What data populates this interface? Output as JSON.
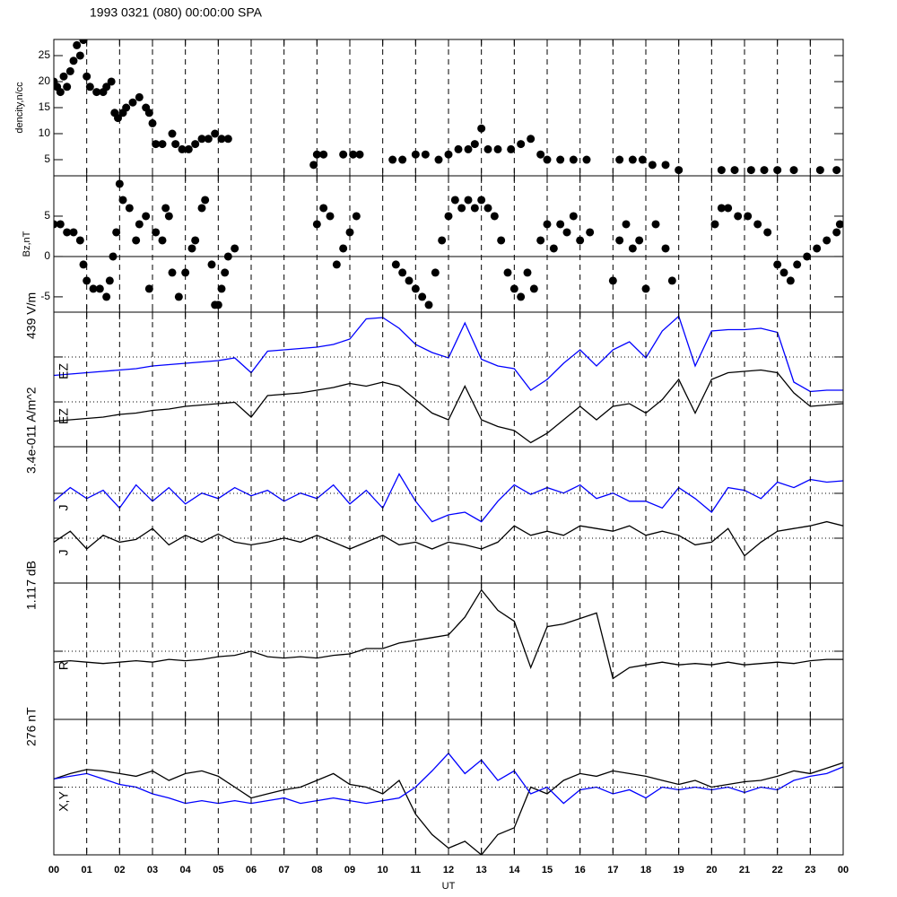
{
  "chart_data": [
    {
      "type": "scatter",
      "title": "1993 0321 (080) 00:00:00 SPA",
      "ylabel": "dencity,n/cc",
      "color": "#000000",
      "xlim": [
        0,
        24
      ],
      "ylim": [
        1.9,
        28.1
      ],
      "yticks": [
        5,
        10,
        15,
        20,
        25
      ],
      "x": [
        0,
        0.1,
        0.2,
        0.3,
        0.4,
        0.5,
        0.6,
        0.7,
        0.8,
        0.9,
        1.0,
        1.1,
        1.3,
        1.5,
        1.6,
        1.75,
        1.85,
        1.95,
        2.1,
        2.2,
        2.4,
        2.6,
        2.8,
        2.9,
        3.0,
        3.1,
        3.3,
        3.6,
        3.7,
        3.9,
        4.1,
        4.3,
        4.5,
        4.7,
        4.9,
        5.1,
        5.3,
        7.9,
        8.0,
        8.2,
        8.8,
        9.1,
        9.3,
        10.3,
        10.6,
        11.0,
        11.3,
        11.7,
        12.0,
        12.3,
        12.6,
        12.8,
        13.0,
        13.2,
        13.5,
        13.9,
        14.2,
        14.5,
        14.8,
        15.0,
        15.4,
        15.8,
        16.2,
        17.2,
        17.6,
        17.9,
        18.2,
        18.6,
        19.0,
        20.3,
        20.7,
        21.2,
        21.6,
        22.0,
        22.5,
        23.3,
        23.8
      ],
      "values": [
        20,
        19,
        18,
        21,
        19,
        22,
        24,
        27,
        25,
        28,
        21,
        19,
        18,
        18,
        19,
        20,
        14,
        13,
        14,
        15,
        16,
        17,
        15,
        14,
        12,
        8,
        8,
        10,
        8,
        7,
        7,
        8,
        9,
        9,
        10,
        9,
        9,
        4,
        6,
        6,
        6,
        6,
        6,
        5,
        5,
        6,
        6,
        5,
        6,
        7,
        7,
        8,
        11,
        7,
        7,
        7,
        8,
        9,
        6,
        5,
        5,
        5,
        5,
        5,
        5,
        5,
        4,
        4,
        3,
        3,
        3,
        3,
        3,
        3,
        3,
        3,
        3
      ]
    },
    {
      "type": "scatter",
      "ylabel": "Bz,nT",
      "color": "#000000",
      "zero_line": true,
      "xlim": [
        0,
        24
      ],
      "ylim": [
        -6.9,
        10
      ],
      "yticks": [
        -5,
        0,
        5
      ],
      "x": [
        0.0,
        0.2,
        0.4,
        0.6,
        0.8,
        0.9,
        1.0,
        1.2,
        1.4,
        1.6,
        1.7,
        1.8,
        1.9,
        2.0,
        2.1,
        2.3,
        2.5,
        2.6,
        2.8,
        2.9,
        3.1,
        3.3,
        3.4,
        3.5,
        3.6,
        3.8,
        4.0,
        4.2,
        4.3,
        4.5,
        4.6,
        4.8,
        4.9,
        5.0,
        5.1,
        5.2,
        5.3,
        5.5,
        8.0,
        8.2,
        8.4,
        8.6,
        8.8,
        9.0,
        9.2,
        10.4,
        10.6,
        10.8,
        11.0,
        11.2,
        11.4,
        11.6,
        11.8,
        12.0,
        12.2,
        12.4,
        12.6,
        12.8,
        13.0,
        13.2,
        13.4,
        13.6,
        13.8,
        14.0,
        14.2,
        14.4,
        14.6,
        14.8,
        15.0,
        15.2,
        15.4,
        15.6,
        15.8,
        16.0,
        16.3,
        17.0,
        17.2,
        17.4,
        17.6,
        17.8,
        18.0,
        18.3,
        18.6,
        18.8,
        20.1,
        20.3,
        20.5,
        20.8,
        21.1,
        21.4,
        21.7,
        22.0,
        22.2,
        22.4,
        22.6,
        22.9,
        23.2,
        23.5,
        23.8,
        23.9
      ],
      "values": [
        4,
        4,
        3,
        3,
        2,
        -1,
        -3,
        -4,
        -4,
        -5,
        -3,
        0,
        3,
        9,
        7,
        6,
        2,
        4,
        5,
        -4,
        3,
        2,
        6,
        5,
        -2,
        -5,
        -2,
        1,
        2,
        6,
        7,
        -1,
        -6,
        -6,
        -4,
        -2,
        0,
        1,
        4,
        6,
        5,
        -1,
        1,
        3,
        5,
        -1,
        -2,
        -3,
        -4,
        -5,
        -6,
        -2,
        2,
        5,
        7,
        6,
        7,
        6,
        7,
        6,
        5,
        2,
        -2,
        -4,
        -5,
        -2,
        -4,
        2,
        4,
        1,
        4,
        3,
        5,
        2,
        3,
        -3,
        2,
        4,
        1,
        2,
        -4,
        4,
        1,
        -3,
        4,
        6,
        6,
        5,
        5,
        4,
        3,
        -1,
        -2,
        -3,
        -1,
        0,
        1,
        2,
        3,
        4
      ]
    },
    {
      "type": "line",
      "scale_label": "439 V/m",
      "labels": [
        "EZ",
        "EZ"
      ],
      "xlim": [
        0,
        24
      ],
      "ylim": [
        0,
        1
      ],
      "ref_lines": [
        0.667,
        0.333
      ],
      "x": [
        0,
        0.5,
        1,
        1.5,
        2,
        2.5,
        3,
        3.5,
        4,
        4.5,
        5,
        5.5,
        6,
        6.5,
        7,
        7.5,
        8,
        8.5,
        9,
        9.5,
        10,
        10.5,
        11,
        11.5,
        12,
        12.5,
        13,
        13.5,
        14,
        14.5,
        15,
        15.5,
        16,
        16.5,
        17,
        17.5,
        18,
        18.5,
        19,
        19.5,
        20,
        20.5,
        21,
        21.5,
        22,
        22.5,
        23,
        23.5,
        24
      ],
      "series": [
        {
          "color": "#0000ff",
          "values": [
            0.53,
            0.54,
            0.55,
            0.56,
            0.57,
            0.58,
            0.6,
            0.61,
            0.62,
            0.63,
            0.64,
            0.66,
            0.55,
            0.71,
            0.72,
            0.73,
            0.74,
            0.76,
            0.8,
            0.95,
            0.96,
            0.88,
            0.76,
            0.7,
            0.66,
            0.92,
            0.65,
            0.6,
            0.58,
            0.42,
            0.5,
            0.62,
            0.72,
            0.6,
            0.72,
            0.78,
            0.66,
            0.86,
            0.97,
            0.6,
            0.86,
            0.87,
            0.87,
            0.88,
            0.85,
            0.48,
            0.41,
            0.42,
            0.42
          ]
        },
        {
          "color": "#000000",
          "values": [
            0.19,
            0.2,
            0.21,
            0.22,
            0.24,
            0.25,
            0.27,
            0.28,
            0.3,
            0.31,
            0.32,
            0.33,
            0.22,
            0.38,
            0.39,
            0.4,
            0.42,
            0.44,
            0.47,
            0.45,
            0.48,
            0.45,
            0.35,
            0.25,
            0.2,
            0.45,
            0.2,
            0.15,
            0.12,
            0.03,
            0.1,
            0.2,
            0.3,
            0.2,
            0.3,
            0.32,
            0.25,
            0.35,
            0.5,
            0.25,
            0.5,
            0.55,
            0.56,
            0.57,
            0.55,
            0.4,
            0.3,
            0.31,
            0.32
          ]
        }
      ]
    },
    {
      "type": "line",
      "scale_label": "3.4e-011 A/m^2",
      "labels": [
        "J",
        "J"
      ],
      "xlim": [
        0,
        24
      ],
      "ylim": [
        0,
        1
      ],
      "ref_lines": [
        0.658,
        0.329
      ],
      "x": [
        0,
        0.5,
        1,
        1.5,
        2,
        2.5,
        3,
        3.5,
        4,
        4.5,
        5,
        5.5,
        6,
        6.5,
        7,
        7.5,
        8,
        8.5,
        9,
        9.5,
        10,
        10.5,
        11,
        11.5,
        12,
        12.5,
        13,
        13.5,
        14,
        14.5,
        15,
        15.5,
        16,
        16.5,
        17,
        17.5,
        18,
        18.5,
        19,
        19.5,
        20,
        20.5,
        21,
        21.5,
        22,
        22.5,
        23,
        23.5,
        24
      ],
      "series": [
        {
          "color": "#0000ff",
          "values": [
            0.6,
            0.7,
            0.62,
            0.68,
            0.55,
            0.72,
            0.6,
            0.7,
            0.58,
            0.66,
            0.62,
            0.7,
            0.64,
            0.68,
            0.6,
            0.66,
            0.62,
            0.72,
            0.58,
            0.68,
            0.55,
            0.8,
            0.6,
            0.45,
            0.5,
            0.52,
            0.45,
            0.6,
            0.72,
            0.65,
            0.7,
            0.66,
            0.72,
            0.62,
            0.66,
            0.6,
            0.6,
            0.55,
            0.7,
            0.62,
            0.52,
            0.7,
            0.68,
            0.62,
            0.74,
            0.7,
            0.76,
            0.74,
            0.75
          ]
        },
        {
          "color": "#000000",
          "values": [
            0.3,
            0.38,
            0.25,
            0.35,
            0.3,
            0.32,
            0.4,
            0.28,
            0.35,
            0.3,
            0.36,
            0.3,
            0.28,
            0.3,
            0.33,
            0.3,
            0.35,
            0.3,
            0.25,
            0.3,
            0.35,
            0.28,
            0.3,
            0.25,
            0.3,
            0.28,
            0.25,
            0.3,
            0.42,
            0.35,
            0.38,
            0.35,
            0.42,
            0.4,
            0.38,
            0.42,
            0.35,
            0.38,
            0.35,
            0.28,
            0.3,
            0.4,
            0.2,
            0.3,
            0.38,
            0.4,
            0.42,
            0.45,
            0.42
          ]
        }
      ]
    },
    {
      "type": "line",
      "scale_label": "1.117 dB",
      "labels": [
        "R"
      ],
      "xlim": [
        0,
        24
      ],
      "ylim": [
        0,
        1
      ],
      "ref_lines": [
        0.5
      ],
      "x": [
        0,
        0.5,
        1,
        1.5,
        2,
        2.5,
        3,
        3.5,
        4,
        4.5,
        5,
        5.5,
        6,
        6.5,
        7,
        7.5,
        8,
        8.5,
        9,
        9.5,
        10,
        10.5,
        11,
        11.5,
        12,
        12.5,
        13,
        13.5,
        14,
        14.5,
        15,
        15.5,
        16,
        16.5,
        17,
        17.5,
        18,
        18.5,
        19,
        19.5,
        20,
        20.5,
        21,
        21.5,
        22,
        22.5,
        23,
        23.5,
        24
      ],
      "series": [
        {
          "color": "#000000",
          "values": [
            0.42,
            0.43,
            0.42,
            0.41,
            0.42,
            0.43,
            0.42,
            0.44,
            0.43,
            0.44,
            0.46,
            0.47,
            0.5,
            0.46,
            0.45,
            0.46,
            0.45,
            0.47,
            0.48,
            0.52,
            0.52,
            0.56,
            0.58,
            0.6,
            0.62,
            0.75,
            0.95,
            0.8,
            0.72,
            0.38,
            0.68,
            0.7,
            0.74,
            0.78,
            0.3,
            0.38,
            0.4,
            0.42,
            0.4,
            0.41,
            0.4,
            0.42,
            0.4,
            0.41,
            0.42,
            0.41,
            0.43,
            0.44,
            0.44
          ]
        }
      ]
    },
    {
      "type": "line",
      "scale_label": "276 nT",
      "labels": [
        "X,Y"
      ],
      "xlabel": "UT",
      "xlim": [
        0,
        24
      ],
      "ylim": [
        0,
        1
      ],
      "ref_lines": [
        0.5
      ],
      "xticks": [
        {
          "value": 0,
          "label": "00"
        },
        {
          "value": 1,
          "label": "01"
        },
        {
          "value": 2,
          "label": "02"
        },
        {
          "value": 3,
          "label": "03"
        },
        {
          "value": 4,
          "label": "04"
        },
        {
          "value": 5,
          "label": "05"
        },
        {
          "value": 6,
          "label": "06"
        },
        {
          "value": 7,
          "label": "07"
        },
        {
          "value": 8,
          "label": "08"
        },
        {
          "value": 9,
          "label": "09"
        },
        10,
        11,
        12,
        13,
        14,
        15,
        16,
        17,
        18,
        19,
        20,
        21,
        22,
        23,
        {
          "value": 24,
          "label": "00"
        }
      ],
      "x": [
        0,
        0.5,
        1,
        1.5,
        2,
        2.5,
        3,
        3.5,
        4,
        4.5,
        5,
        5.5,
        6,
        6.5,
        7,
        7.5,
        8,
        8.5,
        9,
        9.5,
        10,
        10.5,
        11,
        11.5,
        12,
        12.5,
        13,
        13.5,
        14,
        14.5,
        15,
        15.5,
        16,
        16.5,
        17,
        17.5,
        18,
        18.5,
        19,
        19.5,
        20,
        20.5,
        21,
        21.5,
        22,
        22.5,
        23,
        23.5,
        24
      ],
      "series": [
        {
          "color": "#000000",
          "values": [
            0.56,
            0.6,
            0.63,
            0.62,
            0.6,
            0.58,
            0.62,
            0.55,
            0.6,
            0.62,
            0.58,
            0.5,
            0.42,
            0.45,
            0.48,
            0.5,
            0.55,
            0.6,
            0.52,
            0.5,
            0.45,
            0.55,
            0.3,
            0.15,
            0.05,
            0.1,
            0.0,
            0.15,
            0.2,
            0.5,
            0.45,
            0.55,
            0.6,
            0.58,
            0.62,
            0.6,
            0.58,
            0.55,
            0.52,
            0.55,
            0.5,
            0.52,
            0.54,
            0.55,
            0.58,
            0.62,
            0.6,
            0.64,
            0.68
          ]
        },
        {
          "color": "#0000ff",
          "values": [
            0.56,
            0.58,
            0.6,
            0.56,
            0.52,
            0.5,
            0.45,
            0.42,
            0.38,
            0.4,
            0.38,
            0.4,
            0.38,
            0.4,
            0.42,
            0.38,
            0.4,
            0.42,
            0.4,
            0.38,
            0.4,
            0.42,
            0.5,
            0.62,
            0.75,
            0.6,
            0.7,
            0.55,
            0.62,
            0.45,
            0.5,
            0.38,
            0.48,
            0.5,
            0.45,
            0.48,
            0.42,
            0.5,
            0.48,
            0.5,
            0.48,
            0.5,
            0.46,
            0.5,
            0.48,
            0.55,
            0.58,
            0.6,
            0.65
          ]
        }
      ]
    }
  ]
}
